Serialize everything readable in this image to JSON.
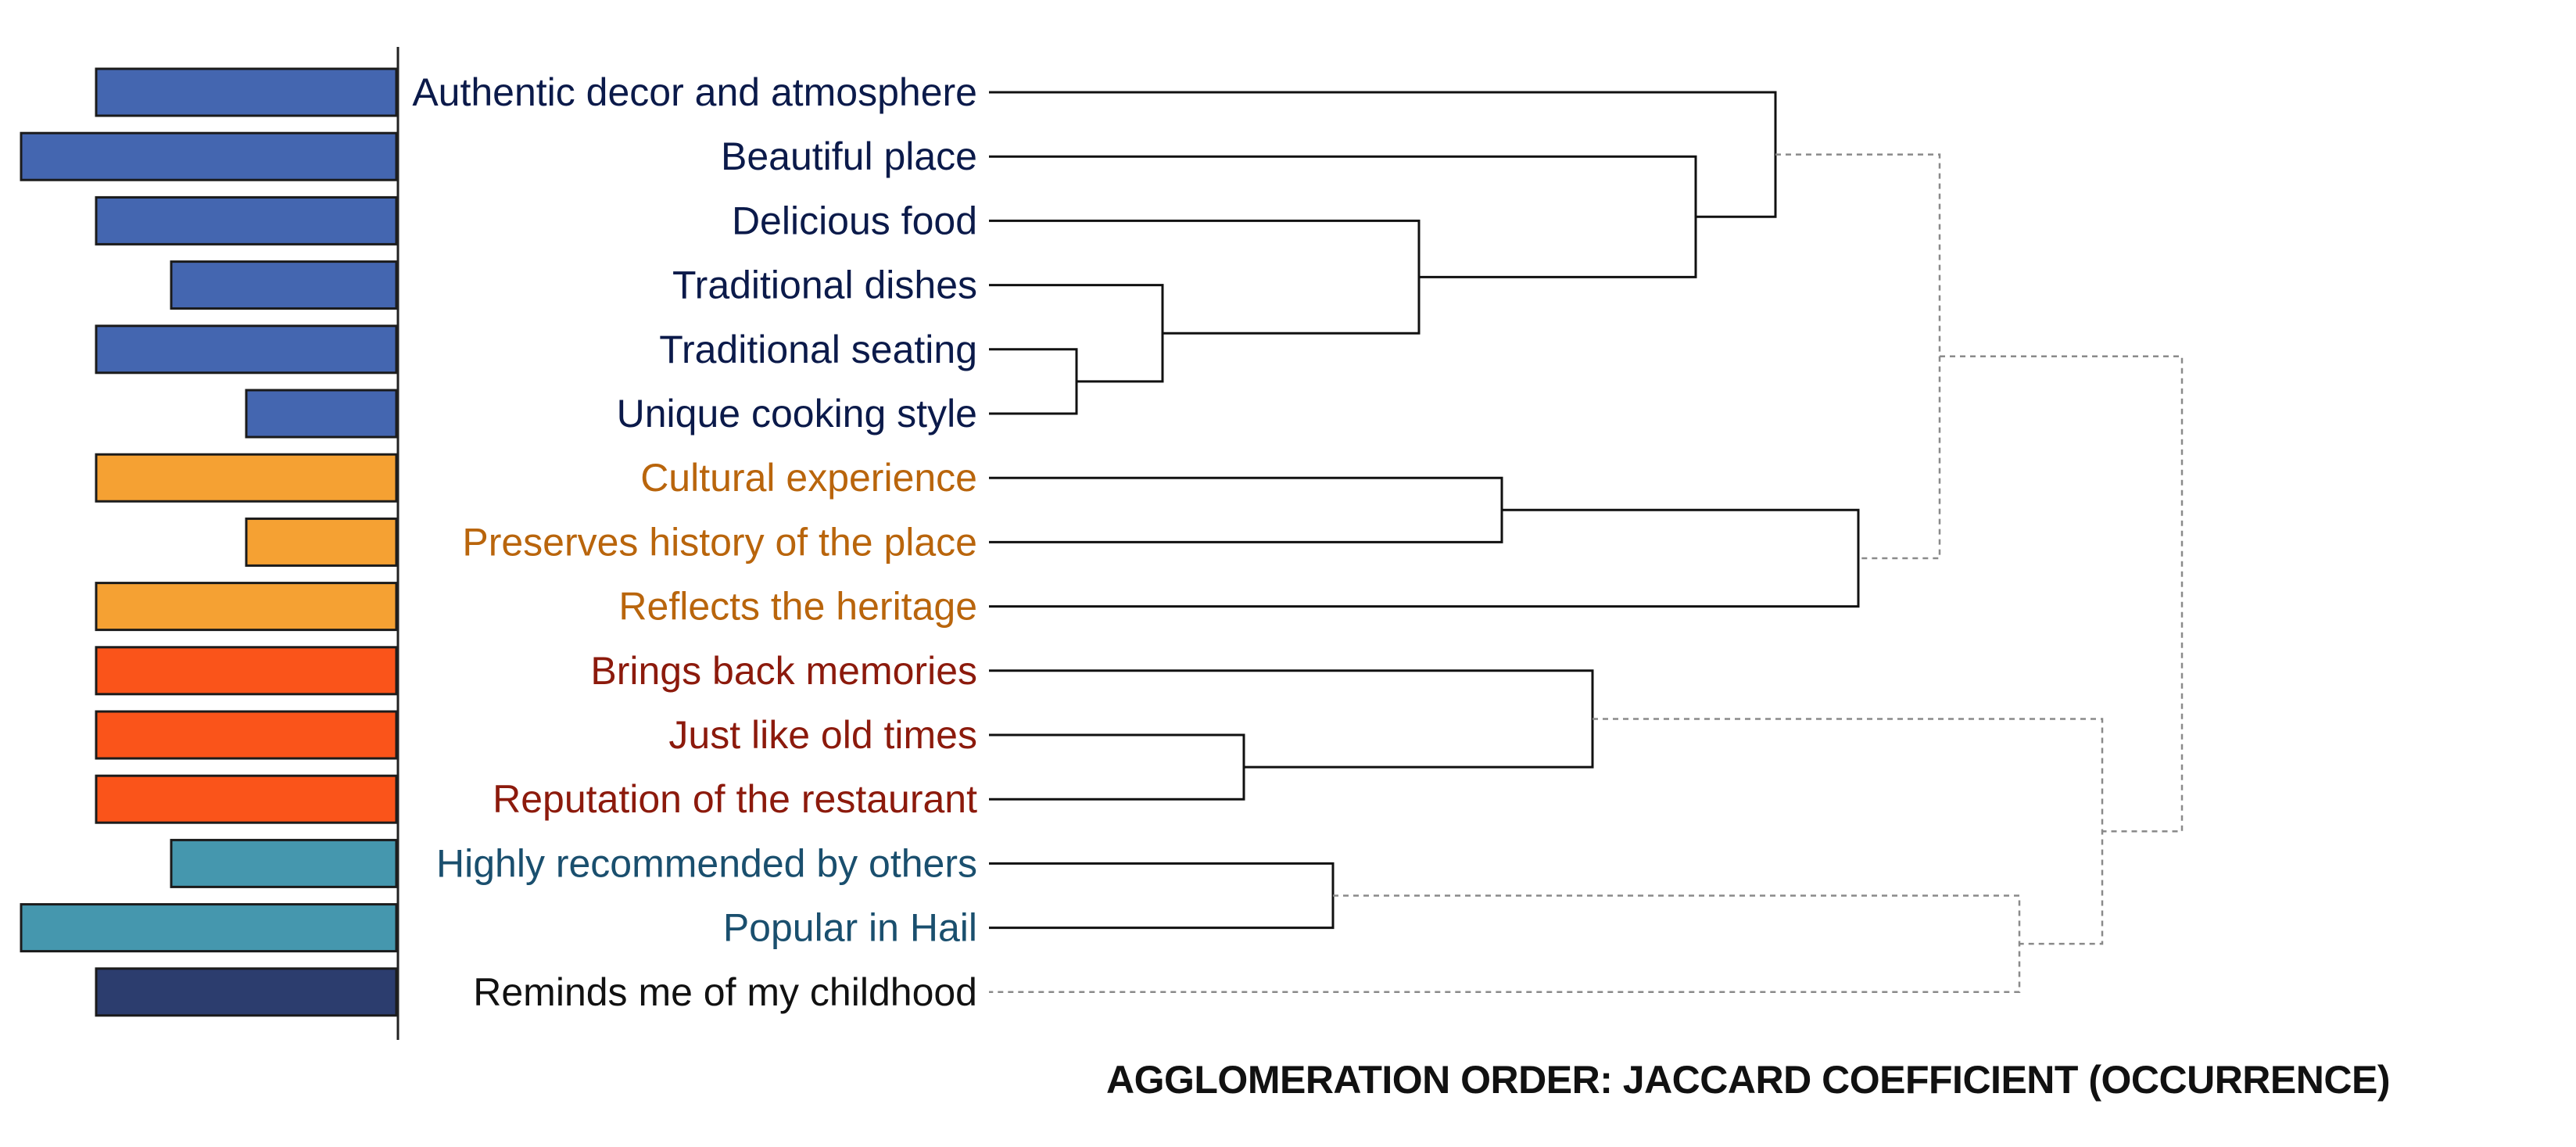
{
  "caption": "AGGLOMERATION ORDER: JACCARD COEFFICIENT (OCCURRENCE)",
  "groups": {
    "blue": {
      "bar_color": "#4466B0",
      "text_color": "#0B1A4A"
    },
    "orange": {
      "bar_color": "#F5A133",
      "text_color": "#B9650C"
    },
    "red": {
      "bar_color": "#FA541A",
      "text_color": "#8C1A0C"
    },
    "teal": {
      "bar_color": "#4597AE",
      "text_color": "#1A4F6E"
    },
    "navy": {
      "bar_color": "#2C3D6E",
      "text_color": "#111111"
    }
  },
  "items": [
    {
      "label": "Authentic decor and atmosphere",
      "group": "blue",
      "bar_value": 0.8
    },
    {
      "label": "Beautiful place",
      "group": "blue",
      "bar_value": 1.0
    },
    {
      "label": "Delicious food",
      "group": "blue",
      "bar_value": 0.8
    },
    {
      "label": "Traditional dishes",
      "group": "blue",
      "bar_value": 0.6
    },
    {
      "label": "Traditional seating",
      "group": "blue",
      "bar_value": 0.8
    },
    {
      "label": "Unique cooking style",
      "group": "blue",
      "bar_value": 0.4
    },
    {
      "label": "Cultural experience",
      "group": "orange",
      "bar_value": 0.8
    },
    {
      "label": "Preserves history of the place",
      "group": "orange",
      "bar_value": 0.4
    },
    {
      "label": "Reflects the heritage",
      "group": "orange",
      "bar_value": 0.8
    },
    {
      "label": "Brings back memories",
      "group": "red",
      "bar_value": 0.8
    },
    {
      "label": "Just like old times",
      "group": "red",
      "bar_value": 0.8
    },
    {
      "label": "Reputation of the restaurant",
      "group": "red",
      "bar_value": 0.8
    },
    {
      "label": "Highly recommended by others",
      "group": "teal",
      "bar_value": 0.6
    },
    {
      "label": "Popular in Hail",
      "group": "teal",
      "bar_value": 1.0
    },
    {
      "label": "Reminds me of my childhood",
      "group": "navy",
      "bar_value": 0.8
    }
  ],
  "merges": [
    {
      "id": "m1",
      "left": "i4",
      "right": "i5",
      "height": 0.056,
      "style": "solid"
    },
    {
      "id": "m2",
      "left": "i3",
      "right": "m1",
      "height": 0.111,
      "style": "solid"
    },
    {
      "id": "m3",
      "left": "i2",
      "right": "m2",
      "height": 0.275,
      "style": "solid"
    },
    {
      "id": "m4",
      "left": "i1",
      "right": "m3",
      "height": 0.452,
      "style": "solid"
    },
    {
      "id": "m5",
      "left": "i0",
      "right": "m4",
      "height": 0.503,
      "style": "solid"
    },
    {
      "id": "m6",
      "left": "i6",
      "right": "i7",
      "height": 0.328,
      "style": "solid"
    },
    {
      "id": "m7",
      "left": "m6",
      "right": "i8",
      "height": 0.556,
      "style": "solid"
    },
    {
      "id": "m8",
      "left": "i10",
      "right": "i11",
      "height": 0.163,
      "style": "solid"
    },
    {
      "id": "m9",
      "left": "i9",
      "right": "m8",
      "height": 0.386,
      "style": "solid"
    },
    {
      "id": "m10",
      "left": "i12",
      "right": "i13",
      "height": 0.22,
      "style": "solid"
    },
    {
      "id": "m11",
      "left": "m10",
      "right": "i14",
      "height": 0.659,
      "style": "dashed"
    },
    {
      "id": "m12",
      "left": "m9",
      "right": "m11",
      "height": 0.712,
      "style": "dashed"
    },
    {
      "id": "m13",
      "left": "m5",
      "right": "m7",
      "height": 0.608,
      "style": "dashed"
    },
    {
      "id": "m14",
      "left": "m13",
      "right": "m12",
      "height": 0.763,
      "style": "dashed"
    }
  ]
}
